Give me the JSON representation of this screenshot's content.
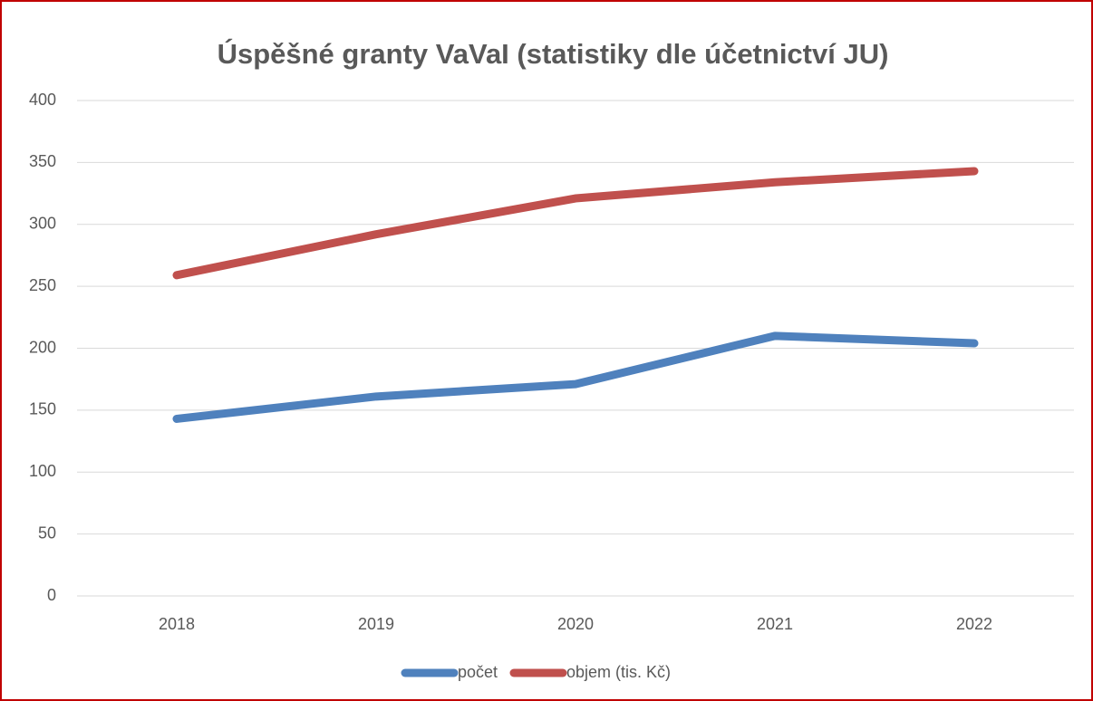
{
  "chart_data": {
    "type": "line",
    "title": "Úspěšné granty VaVaI (statistiky dle účetnictví JU)",
    "categories": [
      "2018",
      "2019",
      "2020",
      "2021",
      "2022"
    ],
    "series": [
      {
        "name": "počet",
        "color": "#4f81bd",
        "values": [
          143,
          161,
          171,
          210,
          204
        ]
      },
      {
        "name": "objem (tis. Kč)",
        "color": "#c0504d",
        "values": [
          259,
          292,
          321,
          334,
          343
        ]
      }
    ],
    "ylim": [
      0,
      400
    ],
    "yticks": [
      0,
      50,
      100,
      150,
      200,
      250,
      300,
      350,
      400
    ],
    "grid": true,
    "legend": "bottom"
  }
}
